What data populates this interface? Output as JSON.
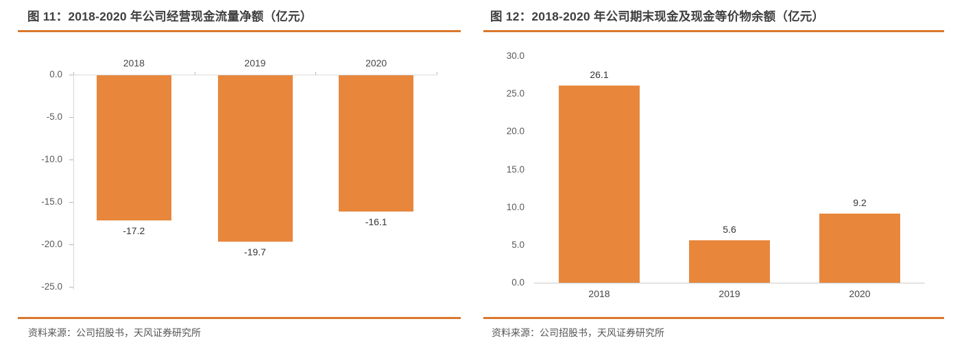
{
  "figures": [
    {
      "title": "图 11：2018-2020 年公司经营现金流量净额（亿元）",
      "source": "资料来源：公司招股书，天风证券研究所"
    },
    {
      "title": "图 12：2018-2020 年公司期末现金及现金等价物余额（亿元）",
      "source": "资料来源：公司招股书，天风证券研究所"
    }
  ],
  "colors": {
    "bar": "#e8873c",
    "rule": "#d9762b",
    "title_text": "#3f3f3f",
    "axis_text": "#595959",
    "label_text": "#333333",
    "axis_line": "#d6d6d6"
  },
  "chart_data": [
    {
      "type": "bar",
      "title": "图 11：2018-2020 年公司经营现金流量净额（亿元）",
      "categories": [
        "2018",
        "2019",
        "2020"
      ],
      "values": [
        -17.2,
        -19.7,
        -16.1
      ],
      "value_labels": [
        "-17.2",
        "-19.7",
        "-16.1"
      ],
      "xlabel": "",
      "ylabel": "",
      "ylim": [
        -25,
        0
      ],
      "yticks": [
        "0.0",
        "-5.0",
        "-10.0",
        "-15.0",
        "-20.0",
        "-25.0"
      ],
      "ytick_values": [
        0,
        -5,
        -10,
        -15,
        -20,
        -25
      ],
      "grid": false,
      "legend": "none",
      "category_label_position": "above-zero-line",
      "value_label_position": "below-bar"
    },
    {
      "type": "bar",
      "title": "图 12：2018-2020 年公司期末现金及现金等价物余额（亿元）",
      "categories": [
        "2018",
        "2019",
        "2020"
      ],
      "values": [
        26.1,
        5.6,
        9.2
      ],
      "value_labels": [
        "26.1",
        "5.6",
        "9.2"
      ],
      "xlabel": "",
      "ylabel": "",
      "ylim": [
        0,
        30
      ],
      "yticks": [
        "30.0",
        "25.0",
        "20.0",
        "15.0",
        "10.0",
        "5.0",
        "0.0"
      ],
      "ytick_values": [
        30,
        25,
        20,
        15,
        10,
        5,
        0
      ],
      "grid": false,
      "legend": "none",
      "category_label_position": "below-baseline",
      "value_label_position": "above-bar"
    }
  ]
}
